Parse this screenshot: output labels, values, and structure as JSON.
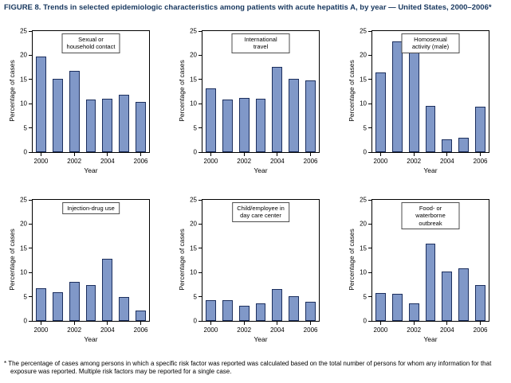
{
  "figure": {
    "title": "FIGURE 8. Trends in selected epidemiologic characteristics among patients with acute hepatitis A, by year — United States, 2000–2006*",
    "footnote": "* The percentage of cases among persons in which a specific risk factor was reported was calculated based on the total number of persons for whom any information for that exposure was reported. Multiple risk factors may be reported for a single case."
  },
  "chart_data": {
    "type": "bar",
    "x": [
      2000,
      2001,
      2002,
      2003,
      2004,
      2005,
      2006
    ],
    "xlabel": "Year",
    "ylabel": "Percentage of cases",
    "ylim": [
      0,
      25
    ],
    "yticks": [
      0,
      5,
      10,
      15,
      20,
      25
    ],
    "xtick_labels": [
      "2000",
      "2002",
      "2004",
      "2006"
    ],
    "xtick_indices": [
      0,
      2,
      4,
      6
    ],
    "bar_color": "#8098c8",
    "bar_border_color": "#1c2f5e",
    "grid": false,
    "legend": "none",
    "charts": [
      {
        "title": "Sexual or household contact",
        "values": [
          19.7,
          15.2,
          16.7,
          10.8,
          11.1,
          11.9,
          10.3
        ]
      },
      {
        "title": "International travel",
        "values": [
          13.2,
          10.9,
          11.2,
          11.1,
          17.6,
          15.1,
          14.8
        ]
      },
      {
        "title": "Homosexual activity (male)",
        "values": [
          16.4,
          22.9,
          23.1,
          9.5,
          2.7,
          3.0,
          9.3
        ]
      },
      {
        "title": "Injection-drug use",
        "values": [
          6.8,
          6.0,
          8.1,
          7.4,
          12.8,
          4.9,
          2.1
        ]
      },
      {
        "title": "Child/employee in\nday care center",
        "values": [
          4.3,
          4.2,
          3.2,
          3.6,
          6.5,
          5.1,
          3.9
        ]
      },
      {
        "title": "Food- or waterborne outbreak",
        "values": [
          5.8,
          5.6,
          3.6,
          16.0,
          10.2,
          10.9,
          7.4
        ]
      }
    ]
  }
}
